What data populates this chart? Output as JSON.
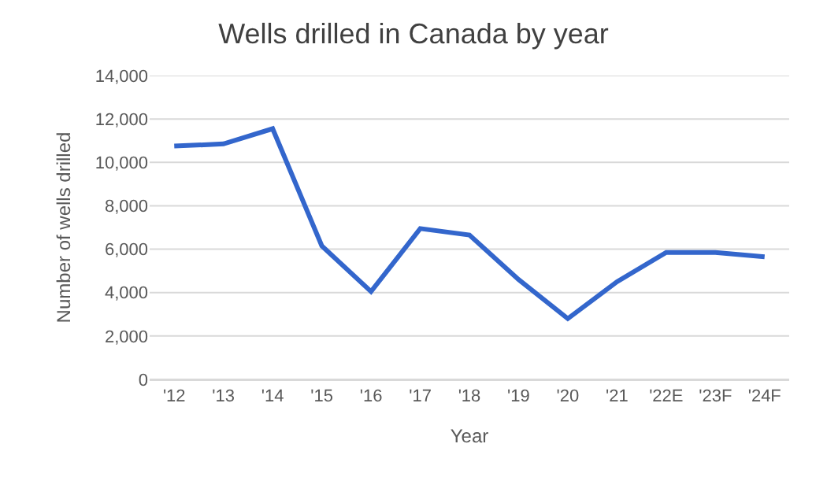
{
  "chart_data": {
    "type": "line",
    "title": "Wells drilled in Canada by year",
    "xlabel": "Year",
    "ylabel": "Number of wells drilled",
    "categories": [
      "'12",
      "'13",
      "'14",
      "'15",
      "'16",
      "'17",
      "'18",
      "'19",
      "'20",
      "'21",
      "'22E",
      "'23F",
      "'24F"
    ],
    "series": [
      {
        "color": "#3366cc",
        "values": [
          10750,
          10850,
          11550,
          6150,
          4050,
          6950,
          6650,
          4600,
          2800,
          4500,
          5850,
          5850,
          5650
        ]
      }
    ],
    "ylim": [
      0,
      14000
    ],
    "yticks": [
      {
        "value": 0,
        "label": "0"
      },
      {
        "value": 2000,
        "label": "2,000"
      },
      {
        "value": 4000,
        "label": "4,000"
      },
      {
        "value": 6000,
        "label": "6,000"
      },
      {
        "value": 8000,
        "label": "8,000"
      },
      {
        "value": 10000,
        "label": "10,000"
      },
      {
        "value": 12000,
        "label": "12,000"
      },
      {
        "value": 14000,
        "label": "14,000"
      }
    ],
    "grid": "y",
    "marker": "none",
    "line_style": "solid"
  }
}
